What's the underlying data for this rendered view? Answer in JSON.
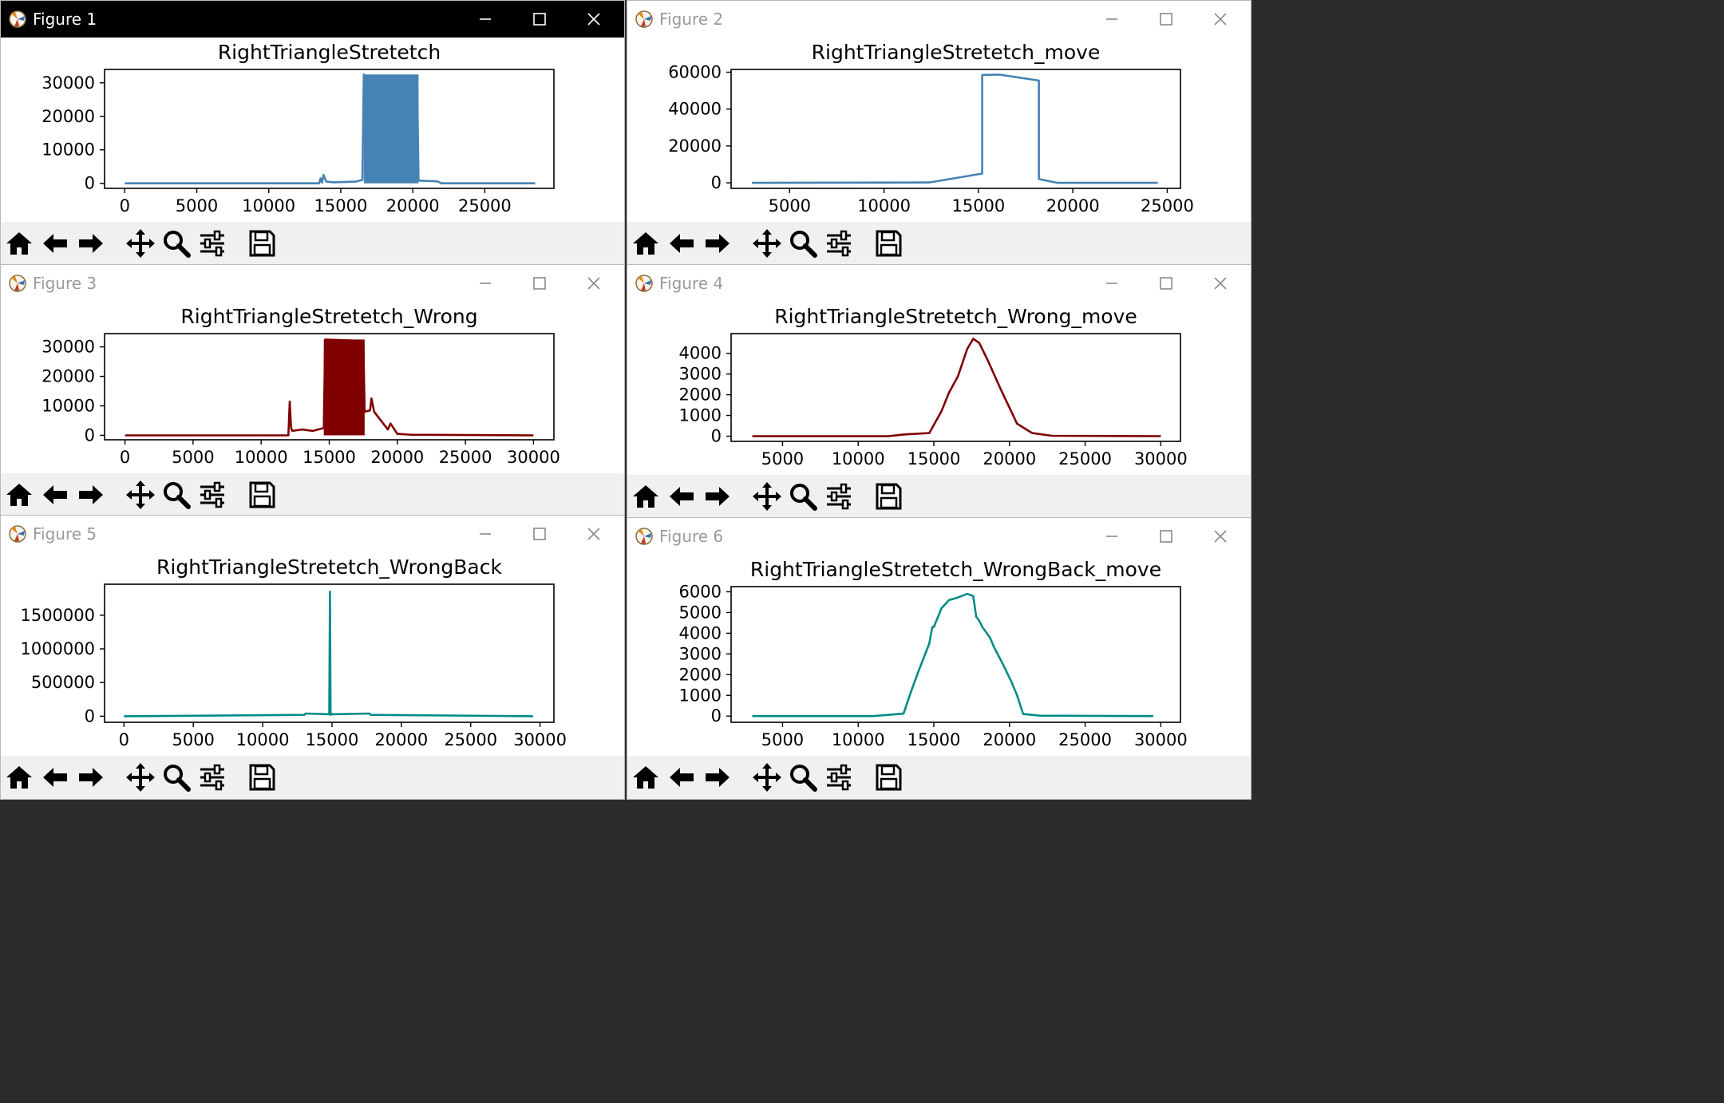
{
  "windows": [
    {
      "id": "figure-1",
      "title": "Figure 1",
      "active": true
    },
    {
      "id": "figure-2",
      "title": "Figure 2",
      "active": false
    },
    {
      "id": "figure-3",
      "title": "Figure 3",
      "active": false
    },
    {
      "id": "figure-4",
      "title": "Figure 4",
      "active": false
    },
    {
      "id": "figure-5",
      "title": "Figure 5",
      "active": false
    },
    {
      "id": "figure-6",
      "title": "Figure 6",
      "active": false
    }
  ],
  "toolbar_buttons": [
    "home-icon",
    "back-icon",
    "forward-icon",
    "pan-icon",
    "zoom-icon",
    "configure-subplots-icon",
    "save-icon"
  ],
  "chart_data": [
    {
      "type": "line",
      "title": "RightTriangleStretetch",
      "color": "#4682b4",
      "xlim": [
        -1400,
        29800
      ],
      "ylim": [
        -1500,
        34000
      ],
      "xticks": [
        0,
        5000,
        10000,
        15000,
        20000,
        25000
      ],
      "yticks": [
        0,
        10000,
        20000,
        30000
      ],
      "series": [
        {
          "x": [
            0,
            13500,
            13600,
            13700,
            13800,
            14000,
            14500,
            16000,
            16500,
            16600,
            16700,
            20300,
            20400,
            21700,
            22000,
            28500
          ],
          "y": [
            0,
            0,
            1500,
            200,
            2500,
            500,
            300,
            500,
            1000,
            32500,
            20000,
            31500,
            800,
            600,
            0,
            0
          ]
        }
      ],
      "filled_band": {
        "x_start": 16600,
        "x_end": 20400,
        "y_top": 32500
      }
    },
    {
      "type": "line",
      "title": "RightTriangleStretetch_move",
      "color": "#4682b4",
      "xlim": [
        1900,
        25700
      ],
      "ylim": [
        -3000,
        61500
      ],
      "xticks": [
        5000,
        10000,
        15000,
        20000,
        25000
      ],
      "yticks": [
        0,
        20000,
        40000,
        60000
      ],
      "series": [
        {
          "x": [
            3000,
            12400,
            15200,
            15200,
            16100,
            18200,
            18200,
            19200,
            24500
          ],
          "y": [
            0,
            200,
            5000,
            58500,
            58700,
            55500,
            2000,
            0,
            0
          ]
        }
      ]
    },
    {
      "type": "line",
      "title": "RightTriangleStretetch_Wrong",
      "color": "#800000",
      "xlim": [
        -1500,
        31500
      ],
      "ylim": [
        -1500,
        34500
      ],
      "xticks": [
        0,
        5000,
        10000,
        15000,
        20000,
        25000,
        30000
      ],
      "yticks": [
        0,
        10000,
        20000,
        30000
      ],
      "series": [
        {
          "x": [
            0,
            12000,
            12100,
            12200,
            12300,
            13000,
            13800,
            14600,
            14700,
            17500,
            17600,
            18000,
            18100,
            18300,
            19300,
            19500,
            20000,
            21000,
            30000
          ],
          "y": [
            0,
            0,
            11500,
            2500,
            1500,
            2000,
            1500,
            2500,
            32500,
            32000,
            8000,
            8500,
            12500,
            8000,
            2000,
            4000,
            500,
            200,
            0
          ]
        }
      ],
      "filled_band": {
        "x_start": 14600,
        "x_end": 17600,
        "y_top": 32500
      }
    },
    {
      "type": "line",
      "title": "RightTriangleStretetch_Wrong_move",
      "color": "#800000",
      "xlim": [
        1600,
        31300
      ],
      "ylim": [
        -250,
        4950
      ],
      "xticks": [
        5000,
        10000,
        15000,
        20000,
        25000,
        30000
      ],
      "yticks": [
        0,
        1000,
        2000,
        3000,
        4000
      ],
      "series": [
        {
          "x": [
            3000,
            12000,
            13000,
            14700,
            15500,
            16000,
            16600,
            17200,
            17600,
            18000,
            18600,
            19400,
            20500,
            21500,
            22800,
            30000
          ],
          "y": [
            0,
            0,
            80,
            150,
            1200,
            2100,
            2900,
            4200,
            4700,
            4500,
            3600,
            2300,
            600,
            150,
            20,
            0
          ]
        }
      ]
    },
    {
      "type": "line",
      "title": "RightTriangleStretetch_WrongBack",
      "color": "#008b8b",
      "xlim": [
        -1400,
        31000
      ],
      "ylim": [
        -90000,
        1960000
      ],
      "xticks": [
        0,
        5000,
        10000,
        15000,
        20000,
        25000,
        30000
      ],
      "yticks": [
        0,
        500000,
        1000000,
        1500000
      ],
      "series": [
        {
          "x": [
            0,
            13000,
            13100,
            14800,
            14850,
            14900,
            14950,
            15000,
            17700,
            17800,
            29500
          ],
          "y": [
            0,
            20000,
            40000,
            30000,
            1850000,
            20000,
            40000,
            30000,
            40000,
            20000,
            0
          ]
        }
      ]
    },
    {
      "type": "line",
      "title": "RightTriangleStretetch_WrongBack_move",
      "color": "#008b8b",
      "xlim": [
        1600,
        31300
      ],
      "ylim": [
        -300,
        6250
      ],
      "xticks": [
        5000,
        10000,
        15000,
        20000,
        25000,
        30000
      ],
      "yticks": [
        0,
        1000,
        2000,
        3000,
        4000,
        5000,
        6000
      ],
      "series": [
        {
          "x": [
            3000,
            11000,
            12000,
            13000,
            13500,
            14000,
            14700,
            14900,
            15000,
            15500,
            16000,
            16500,
            17200,
            17600,
            17800,
            18000,
            18200,
            18700,
            19000,
            19500,
            20100,
            20500,
            20900,
            22000,
            29500
          ],
          "y": [
            0,
            0,
            60,
            120,
            1200,
            2200,
            3500,
            4300,
            4300,
            5200,
            5600,
            5700,
            5900,
            5800,
            4800,
            4600,
            4300,
            3800,
            3300,
            2600,
            1700,
            1000,
            100,
            20,
            0
          ]
        }
      ]
    }
  ]
}
